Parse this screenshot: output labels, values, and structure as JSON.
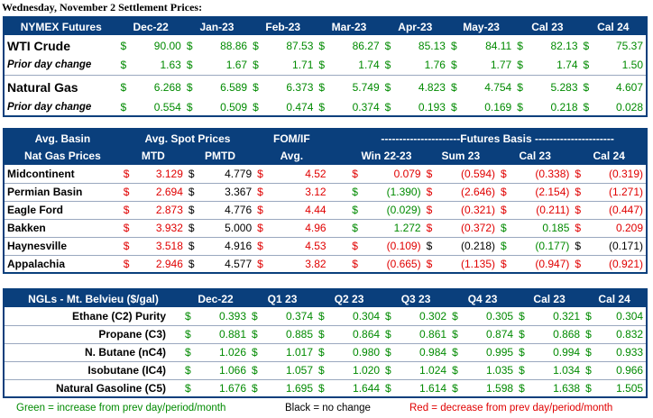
{
  "page_title": "Wednesday, November 2 Settlement Prices:",
  "colors": {
    "header_bg": "#0a3f7c",
    "increase": "#008a00",
    "decrease": "#e00000",
    "nochange": "#000000"
  },
  "futures": {
    "header": [
      "NYMEX Futures",
      "Dec-22",
      "Jan-23",
      "Feb-23",
      "Mar-23",
      "Apr-23",
      "May-23",
      "Cal 23",
      "Cal 24"
    ],
    "wti": {
      "label": "WTI Crude",
      "cells": [
        {
          "d": "$",
          "v": "90.00",
          "c": "g"
        },
        {
          "d": "$",
          "v": "88.86",
          "c": "g"
        },
        {
          "d": "$",
          "v": "87.53",
          "c": "g"
        },
        {
          "d": "$",
          "v": "86.27",
          "c": "g"
        },
        {
          "d": "$",
          "v": "85.13",
          "c": "g"
        },
        {
          "d": "$",
          "v": "84.11",
          "c": "g"
        },
        {
          "d": "$",
          "v": "82.13",
          "c": "g"
        },
        {
          "d": "$",
          "v": "75.37",
          "c": "g"
        }
      ]
    },
    "wti_change": {
      "label": "Prior day change",
      "cells": [
        {
          "d": "$",
          "v": "1.63",
          "c": "g"
        },
        {
          "d": "$",
          "v": "1.67",
          "c": "g"
        },
        {
          "d": "$",
          "v": "1.71",
          "c": "g"
        },
        {
          "d": "$",
          "v": "1.74",
          "c": "g"
        },
        {
          "d": "$",
          "v": "1.76",
          "c": "g"
        },
        {
          "d": "$",
          "v": "1.77",
          "c": "g"
        },
        {
          "d": "$",
          "v": "1.74",
          "c": "g"
        },
        {
          "d": "$",
          "v": "1.50",
          "c": "g"
        }
      ]
    },
    "ng": {
      "label": "Natural Gas",
      "cells": [
        {
          "d": "$",
          "v": "6.268",
          "c": "g"
        },
        {
          "d": "$",
          "v": "6.589",
          "c": "g"
        },
        {
          "d": "$",
          "v": "6.373",
          "c": "g"
        },
        {
          "d": "$",
          "v": "5.749",
          "c": "g"
        },
        {
          "d": "$",
          "v": "4.823",
          "c": "g"
        },
        {
          "d": "$",
          "v": "4.754",
          "c": "g"
        },
        {
          "d": "$",
          "v": "5.283",
          "c": "g"
        },
        {
          "d": "$",
          "v": "4.607",
          "c": "g"
        }
      ]
    },
    "ng_change": {
      "label": "Prior day change",
      "cells": [
        {
          "d": "$",
          "v": "0.554",
          "c": "g"
        },
        {
          "d": "$",
          "v": "0.509",
          "c": "g"
        },
        {
          "d": "$",
          "v": "0.474",
          "c": "g"
        },
        {
          "d": "$",
          "v": "0.374",
          "c": "g"
        },
        {
          "d": "$",
          "v": "0.193",
          "c": "g"
        },
        {
          "d": "$",
          "v": "0.169",
          "c": "g"
        },
        {
          "d": "$",
          "v": "0.218",
          "c": "g"
        },
        {
          "d": "$",
          "v": "0.028",
          "c": "g"
        }
      ]
    }
  },
  "basin": {
    "header1": {
      "avg_basin": "Avg. Basin",
      "avg_spot": "Avg. Spot Prices",
      "fom": "FOM/IF",
      "futures_basis": "----------------------Futures Basis ----------------------"
    },
    "header2": {
      "nat_gas": "Nat Gas Prices",
      "mtd": "MTD",
      "pmtd": "PMTD",
      "avg": "Avg.",
      "win": "Win 22-23",
      "sum": "Sum 23",
      "cal23": "Cal 23",
      "cal24": "Cal 24"
    },
    "rows": [
      {
        "name": "Midcontinent",
        "mtd": {
          "d": "$",
          "v": "3.129",
          "c": "r"
        },
        "pmtd": {
          "d": "$",
          "v": "4.779",
          "c": "k"
        },
        "fom": {
          "d": "$",
          "v": "4.52",
          "c": "r"
        },
        "b": [
          {
            "d": "$",
            "v": "0.079",
            "c": "r"
          },
          {
            "d": "$",
            "v": "(0.594)",
            "c": "r"
          },
          {
            "d": "$",
            "v": "(0.338)",
            "c": "r"
          },
          {
            "d": "$",
            "v": "(0.319)",
            "c": "r"
          }
        ]
      },
      {
        "name": "Permian Basin",
        "mtd": {
          "d": "$",
          "v": "2.694",
          "c": "r"
        },
        "pmtd": {
          "d": "$",
          "v": "3.367",
          "c": "k"
        },
        "fom": {
          "d": "$",
          "v": "3.12",
          "c": "r"
        },
        "b": [
          {
            "d": "$",
            "v": "(1.390)",
            "c": "g"
          },
          {
            "d": "$",
            "v": "(2.646)",
            "c": "r"
          },
          {
            "d": "$",
            "v": "(2.154)",
            "c": "r"
          },
          {
            "d": "$",
            "v": "(1.271)",
            "c": "r"
          }
        ]
      },
      {
        "name": "Eagle Ford",
        "mtd": {
          "d": "$",
          "v": "2.873",
          "c": "r"
        },
        "pmtd": {
          "d": "$",
          "v": "4.776",
          "c": "k"
        },
        "fom": {
          "d": "$",
          "v": "4.44",
          "c": "r"
        },
        "b": [
          {
            "d": "$",
            "v": "(0.029)",
            "c": "g"
          },
          {
            "d": "$",
            "v": "(0.321)",
            "c": "r"
          },
          {
            "d": "$",
            "v": "(0.211)",
            "c": "r"
          },
          {
            "d": "$",
            "v": "(0.447)",
            "c": "r"
          }
        ]
      },
      {
        "name": "Bakken",
        "mtd": {
          "d": "$",
          "v": "3.932",
          "c": "r"
        },
        "pmtd": {
          "d": "$",
          "v": "5.000",
          "c": "k"
        },
        "fom": {
          "d": "$",
          "v": "4.96",
          "c": "r"
        },
        "b": [
          {
            "d": "$",
            "v": "1.272",
            "c": "g"
          },
          {
            "d": "$",
            "v": "(0.372)",
            "c": "r"
          },
          {
            "d": "$",
            "v": "0.185",
            "c": "g"
          },
          {
            "d": "$",
            "v": "0.209",
            "c": "r"
          }
        ]
      },
      {
        "name": "Haynesville",
        "mtd": {
          "d": "$",
          "v": "3.518",
          "c": "r"
        },
        "pmtd": {
          "d": "$",
          "v": "4.916",
          "c": "k"
        },
        "fom": {
          "d": "$",
          "v": "4.53",
          "c": "r"
        },
        "b": [
          {
            "d": "$",
            "v": "(0.109)",
            "c": "r"
          },
          {
            "d": "$",
            "v": "(0.218)",
            "c": "k"
          },
          {
            "d": "$",
            "v": "(0.177)",
            "c": "g"
          },
          {
            "d": "$",
            "v": "(0.171)",
            "c": "k"
          }
        ]
      },
      {
        "name": "Appalachia",
        "mtd": {
          "d": "$",
          "v": "2.946",
          "c": "r"
        },
        "pmtd": {
          "d": "$",
          "v": "4.577",
          "c": "k"
        },
        "fom": {
          "d": "$",
          "v": "3.82",
          "c": "r"
        },
        "b": [
          {
            "d": "$",
            "v": "(0.665)",
            "c": "r"
          },
          {
            "d": "$",
            "v": "(1.135)",
            "c": "r"
          },
          {
            "d": "$",
            "v": "(0.947)",
            "c": "r"
          },
          {
            "d": "$",
            "v": "(0.921)",
            "c": "r"
          }
        ]
      }
    ]
  },
  "ngl": {
    "header": [
      "NGLs - Mt. Belvieu ($/gal)",
      "Dec-22",
      "Q1 23",
      "Q2 23",
      "Q3 23",
      "Q4 23",
      "Cal 23",
      "Cal 24"
    ],
    "rows": [
      {
        "name": "Ethane (C2) Purity",
        "cells": [
          {
            "d": "$",
            "v": "0.393",
            "c": "g"
          },
          {
            "d": "$",
            "v": "0.374",
            "c": "g"
          },
          {
            "d": "$",
            "v": "0.304",
            "c": "g"
          },
          {
            "d": "$",
            "v": "0.302",
            "c": "g"
          },
          {
            "d": "$",
            "v": "0.305",
            "c": "g"
          },
          {
            "d": "$",
            "v": "0.321",
            "c": "g"
          },
          {
            "d": "$",
            "v": "0.304",
            "c": "g"
          }
        ]
      },
      {
        "name": "Propane (C3)",
        "cells": [
          {
            "d": "$",
            "v": "0.881",
            "c": "g"
          },
          {
            "d": "$",
            "v": "0.885",
            "c": "g"
          },
          {
            "d": "$",
            "v": "0.864",
            "c": "g"
          },
          {
            "d": "$",
            "v": "0.861",
            "c": "g"
          },
          {
            "d": "$",
            "v": "0.874",
            "c": "g"
          },
          {
            "d": "$",
            "v": "0.868",
            "c": "g"
          },
          {
            "d": "$",
            "v": "0.832",
            "c": "g"
          }
        ]
      },
      {
        "name": "N. Butane (nC4)",
        "cells": [
          {
            "d": "$",
            "v": "1.026",
            "c": "g"
          },
          {
            "d": "$",
            "v": "1.017",
            "c": "g"
          },
          {
            "d": "$",
            "v": "0.980",
            "c": "g"
          },
          {
            "d": "$",
            "v": "0.984",
            "c": "g"
          },
          {
            "d": "$",
            "v": "0.995",
            "c": "g"
          },
          {
            "d": "$",
            "v": "0.994",
            "c": "g"
          },
          {
            "d": "$",
            "v": "0.933",
            "c": "g"
          }
        ]
      },
      {
        "name": "Isobutane (IC4)",
        "cells": [
          {
            "d": "$",
            "v": "1.066",
            "c": "g"
          },
          {
            "d": "$",
            "v": "1.057",
            "c": "g"
          },
          {
            "d": "$",
            "v": "1.020",
            "c": "g"
          },
          {
            "d": "$",
            "v": "1.024",
            "c": "g"
          },
          {
            "d": "$",
            "v": "1.035",
            "c": "g"
          },
          {
            "d": "$",
            "v": "1.034",
            "c": "g"
          },
          {
            "d": "$",
            "v": "0.966",
            "c": "g"
          }
        ]
      },
      {
        "name": "Natural Gasoline (C5)",
        "cells": [
          {
            "d": "$",
            "v": "1.676",
            "c": "g"
          },
          {
            "d": "$",
            "v": "1.695",
            "c": "g"
          },
          {
            "d": "$",
            "v": "1.644",
            "c": "g"
          },
          {
            "d": "$",
            "v": "1.614",
            "c": "g"
          },
          {
            "d": "$",
            "v": "1.598",
            "c": "g"
          },
          {
            "d": "$",
            "v": "1.638",
            "c": "g"
          },
          {
            "d": "$",
            "v": "1.505",
            "c": "g"
          }
        ]
      }
    ]
  },
  "legend": {
    "green": "Green = increase from prev day/period/month",
    "black": "Black = no change",
    "red": "Red = decrease from prev day/period/month"
  }
}
